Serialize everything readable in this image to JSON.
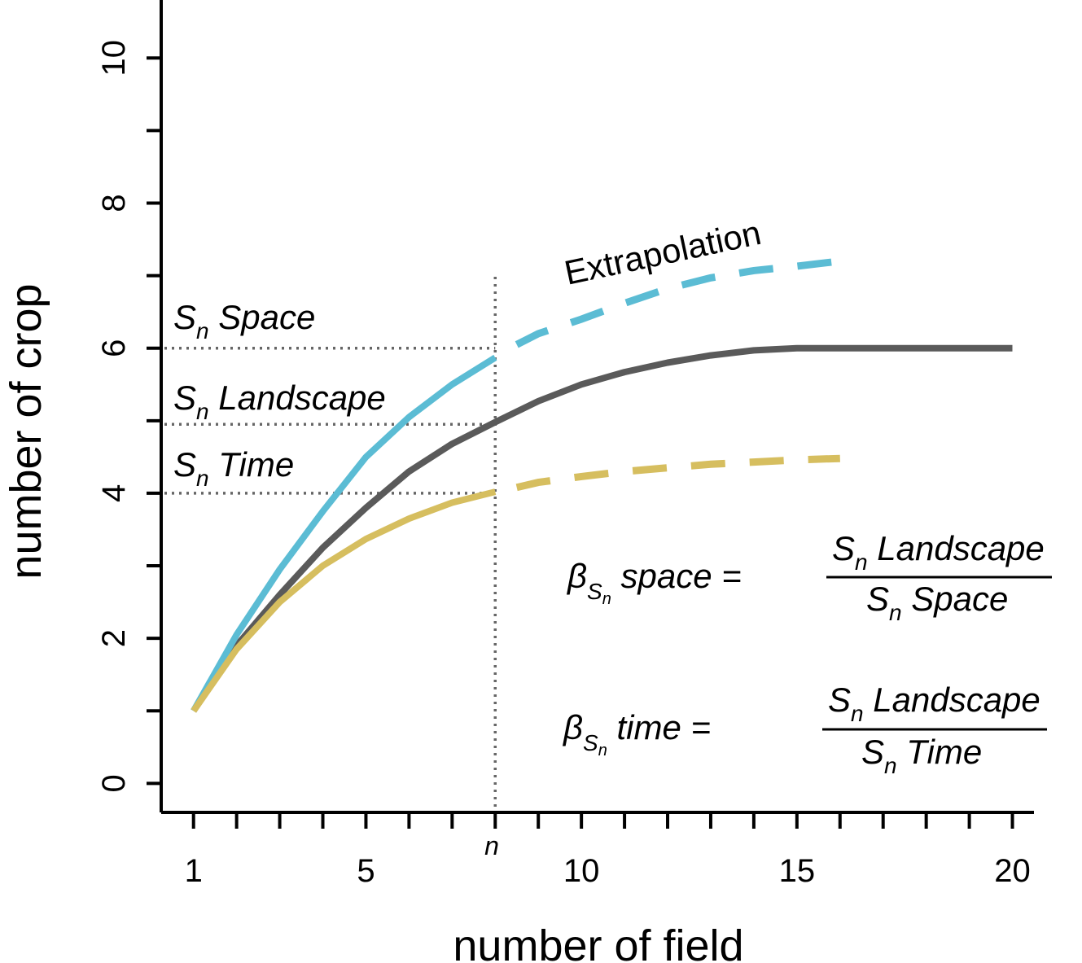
{
  "chart_data": {
    "type": "line",
    "xlabel": "number of field",
    "ylabel": "number of  crop",
    "xlim": [
      0.25,
      20.5
    ],
    "ylim": [
      -0.4,
      10.8
    ],
    "x_ticks": [
      1,
      5,
      10,
      15,
      20
    ],
    "x_minor_ticks": [
      1,
      2,
      3,
      4,
      5,
      6,
      7,
      8,
      9,
      10,
      11,
      12,
      13,
      14,
      15,
      16,
      17,
      18,
      19,
      20
    ],
    "y_ticks": [
      0,
      2,
      4,
      6,
      8,
      10
    ],
    "y_minor_ticks": [
      0,
      1,
      2,
      3,
      4,
      5,
      6,
      7,
      8,
      9,
      10
    ],
    "n_marker": {
      "x": 8,
      "label": "n"
    },
    "grid": false,
    "series": [
      {
        "key": "space",
        "color": "#5bbcd4",
        "observed": {
          "x": [
            1,
            2,
            3,
            4,
            5,
            6,
            7,
            8
          ],
          "y": [
            1.0,
            2.05,
            2.95,
            3.75,
            4.5,
            5.05,
            5.5,
            5.87
          ]
        },
        "extrapolated": {
          "x": [
            8.5,
            9,
            10,
            11,
            12,
            13,
            14,
            15,
            16
          ],
          "y": [
            6.05,
            6.2,
            6.4,
            6.62,
            6.82,
            6.97,
            7.07,
            7.13,
            7.2
          ]
        }
      },
      {
        "key": "landscape",
        "color": "#5a5a5a",
        "observed": {
          "x": [
            1,
            2,
            3,
            4,
            5,
            6,
            7,
            8,
            9,
            10,
            11,
            12,
            13,
            14,
            15,
            16,
            17,
            18,
            19,
            20
          ],
          "y": [
            1.0,
            1.9,
            2.6,
            3.25,
            3.8,
            4.3,
            4.68,
            4.98,
            5.27,
            5.5,
            5.67,
            5.8,
            5.9,
            5.97,
            6.0,
            6.0,
            6.0,
            6.0,
            6.0,
            6.0
          ]
        }
      },
      {
        "key": "time",
        "color": "#d6be5f",
        "observed": {
          "x": [
            1,
            2,
            3,
            4,
            5,
            6,
            7,
            8
          ],
          "y": [
            1.0,
            1.85,
            2.5,
            3.0,
            3.37,
            3.65,
            3.87,
            4.02
          ]
        },
        "extrapolated": {
          "x": [
            8.5,
            9,
            10,
            11,
            12,
            13,
            14,
            15,
            16
          ],
          "y": [
            4.08,
            4.15,
            4.23,
            4.3,
            4.35,
            4.4,
            4.43,
            4.46,
            4.48
          ]
        }
      }
    ],
    "reference_lines": [
      {
        "key": "space",
        "y": 6.0
      },
      {
        "key": "landscape",
        "y": 4.95
      },
      {
        "key": "time",
        "y": 4.0
      }
    ],
    "annotations": {
      "sn_space": {
        "S": "S",
        "sub": "n",
        "text": " Space"
      },
      "sn_landscape": {
        "S": "S",
        "sub": "n",
        "text": " Landscape"
      },
      "sn_time": {
        "S": "S",
        "sub": "n",
        "text": " Time"
      },
      "extrapolation": "Extrapolation",
      "formula_space": {
        "beta": "β",
        "sub_S": "S",
        "sub_n": "n",
        "lhs_text": " space =",
        "num_S": "S",
        "num_sub": "n",
        "num_text": " Landscape",
        "den_S": "S",
        "den_sub": "n",
        "den_text": " Space"
      },
      "formula_time": {
        "beta": "β",
        "sub_S": "S",
        "sub_n": "n",
        "lhs_text": " time =",
        "num_S": "S",
        "num_sub": "n",
        "num_text": " Landscape",
        "den_S": "S",
        "den_sub": "n",
        "den_text": " Time"
      }
    }
  }
}
